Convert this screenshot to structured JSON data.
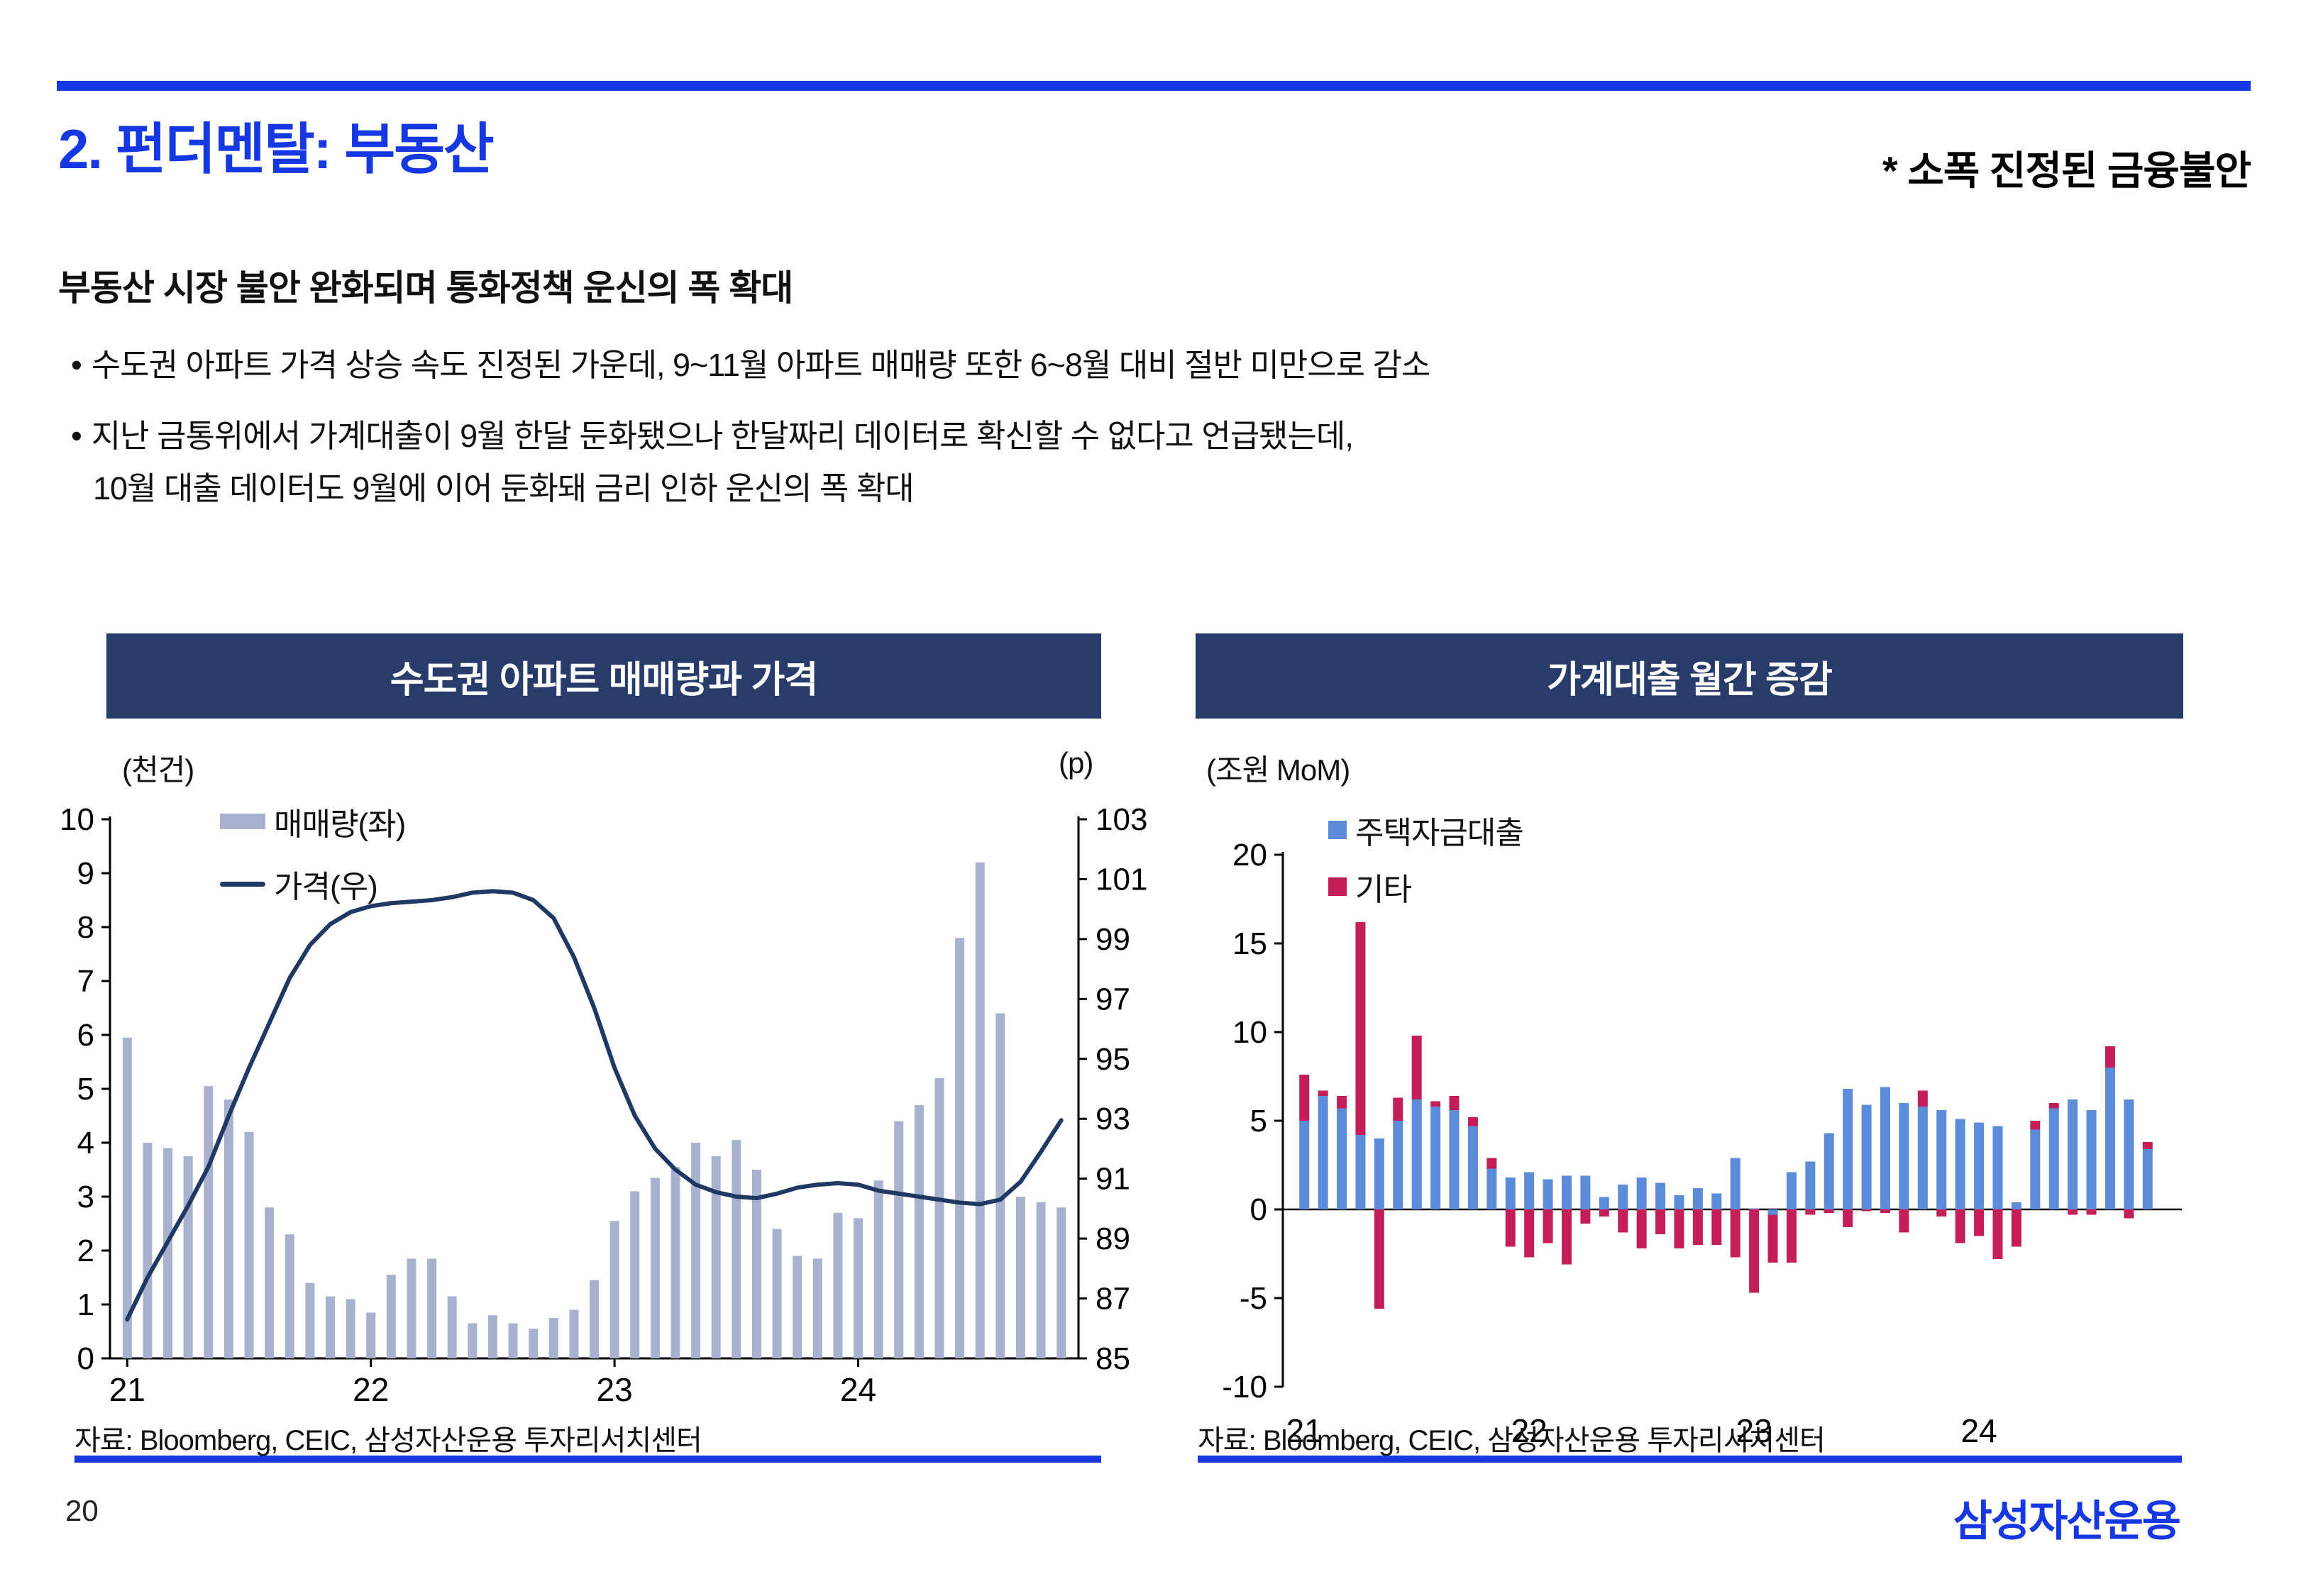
{
  "page": {
    "title": "2. 펀더멘탈: 부동산",
    "subtitle": "* 소폭 진정된 금융불안",
    "heading": "부동산 시장 불안 완화되며 통화정책 운신의 폭 확대",
    "bullet_marker": "•",
    "bullets": [
      "수도권 아파트 가격 상승 속도 진정된 가운데, 9~11월 아파트 매매량 또한 6~8월 대비 절반 미만으로 감소",
      "지난 금통위에서 가계대출이 9월 한달 둔화됐으나 한달짜리 데이터로 확신할 수 없다고 언급됐는데,",
      "10월 대출 데이터도 9월에 이어 둔화돼 금리 인하 운신의 폭 확대"
    ],
    "page_number": "20",
    "logo": "삼성자산운용"
  },
  "colors": {
    "accent_blue": "#1638e2",
    "band_navy": "#273c6b",
    "volume_bar": "#a8b2ce",
    "price_line": "#1f3864",
    "housing_loan_bar": "#5b8bd9",
    "other_loan_bar": "#c41e58"
  },
  "chart_data": [
    {
      "type": "bar",
      "title": "수도권 아파트 매매량과 가격",
      "unit_left": "(천건)",
      "unit_right": "(p)",
      "source": "자료: Bloomberg, CEIC, 삼성자산운용 투자리서치센터",
      "x_start": "2021-01",
      "x_end": "2024-11",
      "x_tick_labels": [
        "21",
        "22",
        "23",
        "24"
      ],
      "x_tick_month_index": [
        0,
        12,
        24,
        36
      ],
      "left_axis": {
        "min": 0,
        "max": 10,
        "step": 1
      },
      "right_axis": {
        "min": 85,
        "max": 103,
        "step": 2
      },
      "series": [
        {
          "name": "매매량(좌)",
          "type": "bar",
          "axis": "left",
          "color": "#a8b2ce",
          "values": [
            5.95,
            4.0,
            3.9,
            3.75,
            5.05,
            4.8,
            4.2,
            2.8,
            2.3,
            1.4,
            1.15,
            1.1,
            0.85,
            1.55,
            1.85,
            1.85,
            1.15,
            0.65,
            0.8,
            0.65,
            0.55,
            0.75,
            0.9,
            1.45,
            2.55,
            3.1,
            3.35,
            3.55,
            4.0,
            3.75,
            4.05,
            3.5,
            2.4,
            1.9,
            1.85,
            2.7,
            2.6,
            3.3,
            4.4,
            4.7,
            5.2,
            7.8,
            9.2,
            6.4,
            3.0,
            2.9,
            2.8
          ]
        },
        {
          "name": "가격(우)",
          "type": "line",
          "axis": "right",
          "color": "#1f3864",
          "values": [
            86.3,
            87.7,
            88.9,
            90.1,
            91.4,
            93.1,
            94.7,
            96.2,
            97.7,
            98.8,
            99.5,
            99.9,
            100.1,
            100.2,
            100.25,
            100.3,
            100.4,
            100.55,
            100.6,
            100.55,
            100.3,
            99.7,
            98.4,
            96.7,
            94.7,
            93.1,
            92.0,
            91.3,
            90.8,
            90.55,
            90.4,
            90.35,
            90.5,
            90.7,
            90.8,
            90.85,
            90.8,
            90.6,
            90.5,
            90.4,
            90.3,
            90.2,
            90.15,
            90.3,
            90.9,
            91.9,
            92.95
          ]
        }
      ]
    },
    {
      "type": "stacked-bar",
      "title": "가계대출 월간 증감",
      "unit": "(조원 MoM)",
      "source": "자료: Bloomberg, CEIC, 삼성자산운용 투자리서치센터",
      "x_start": "2021-01",
      "x_end": "2024-10",
      "x_tick_labels": [
        "21",
        "22",
        "23",
        "24"
      ],
      "x_tick_month_index": [
        0,
        12,
        24,
        36
      ],
      "y_axis": {
        "min": -10,
        "max": 20,
        "step": 5
      },
      "series": [
        {
          "name": "주택자금대출",
          "color": "#5b8bd9",
          "values": [
            5.0,
            6.4,
            5.7,
            4.2,
            4.0,
            5.0,
            6.2,
            5.8,
            5.6,
            4.7,
            2.3,
            1.8,
            2.1,
            1.7,
            1.9,
            1.9,
            0.7,
            1.4,
            1.8,
            1.5,
            0.8,
            1.2,
            0.9,
            2.9,
            0.05,
            -0.3,
            2.1,
            2.7,
            4.3,
            6.8,
            5.9,
            6.9,
            6.0,
            5.8,
            5.6,
            5.1,
            4.9,
            4.7,
            0.4,
            4.5,
            5.7,
            6.2,
            5.6,
            8.0,
            6.2,
            3.4
          ]
        },
        {
          "name": "기타",
          "color": "#c41e58",
          "values": [
            2.6,
            0.3,
            0.7,
            12.0,
            -5.6,
            1.3,
            3.6,
            0.3,
            0.8,
            0.5,
            0.6,
            -2.1,
            -2.7,
            -1.9,
            -3.1,
            -0.8,
            -0.4,
            -1.3,
            -2.2,
            -1.4,
            -2.2,
            -2.0,
            -2.0,
            -2.7,
            -4.7,
            -2.7,
            -3.0,
            -0.3,
            -0.2,
            -1.0,
            -0.1,
            -0.2,
            -1.3,
            0.9,
            -0.4,
            -1.9,
            -1.5,
            -2.8,
            -2.1,
            0.5,
            0.3,
            -0.3,
            -0.3,
            1.2,
            -0.5,
            0.4
          ]
        }
      ]
    }
  ]
}
